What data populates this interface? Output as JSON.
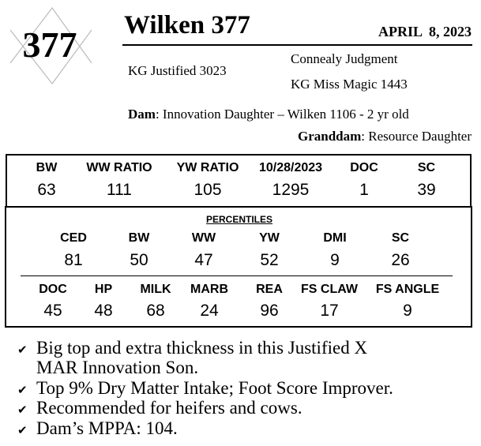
{
  "lot_number": "377",
  "title": "Wilken 377",
  "birth_date": "APRIL  8, 2023",
  "sire": "KG Justified 3023",
  "sire_sire": "Connealy Judgment",
  "sire_dam": "KG Miss Magic 1443",
  "dam": {
    "label": "Dam",
    "value": ": Innovation Daughter – Wilken 1106 - 2 yr old"
  },
  "granddam": {
    "label": "Granddam",
    "value": ": Resource Daughter"
  },
  "measures": {
    "headers": [
      "BW",
      "WW RATIO",
      "YW RATIO",
      "10/28/2023",
      "DOC",
      "SC"
    ],
    "values": [
      "63",
      "111",
      "105",
      "1295",
      "1",
      "39"
    ]
  },
  "percentiles": {
    "title": "PERCENTILES",
    "row1": {
      "headers": [
        "CED",
        "BW",
        "WW",
        "YW",
        "DMI",
        "SC"
      ],
      "values": [
        "81",
        "50",
        "47",
        "52",
        "9",
        "26"
      ]
    },
    "row2": {
      "headers": [
        "DOC",
        "HP",
        "MILK",
        "MARB",
        "REA",
        "FS CLAW",
        "FS ANGLE"
      ],
      "values": [
        "45",
        "48",
        "68",
        "24",
        "96",
        "17",
        "9"
      ]
    }
  },
  "bullets": [
    "Big top and extra thickness in this Justified X",
    "MAR Innovation Son.",
    "Top 9% Dry Matter Intake; Foot Score Improver.",
    "Recommended for heifers and cows.",
    "Dam’s MPPA: 104."
  ],
  "check_icon": "✔"
}
